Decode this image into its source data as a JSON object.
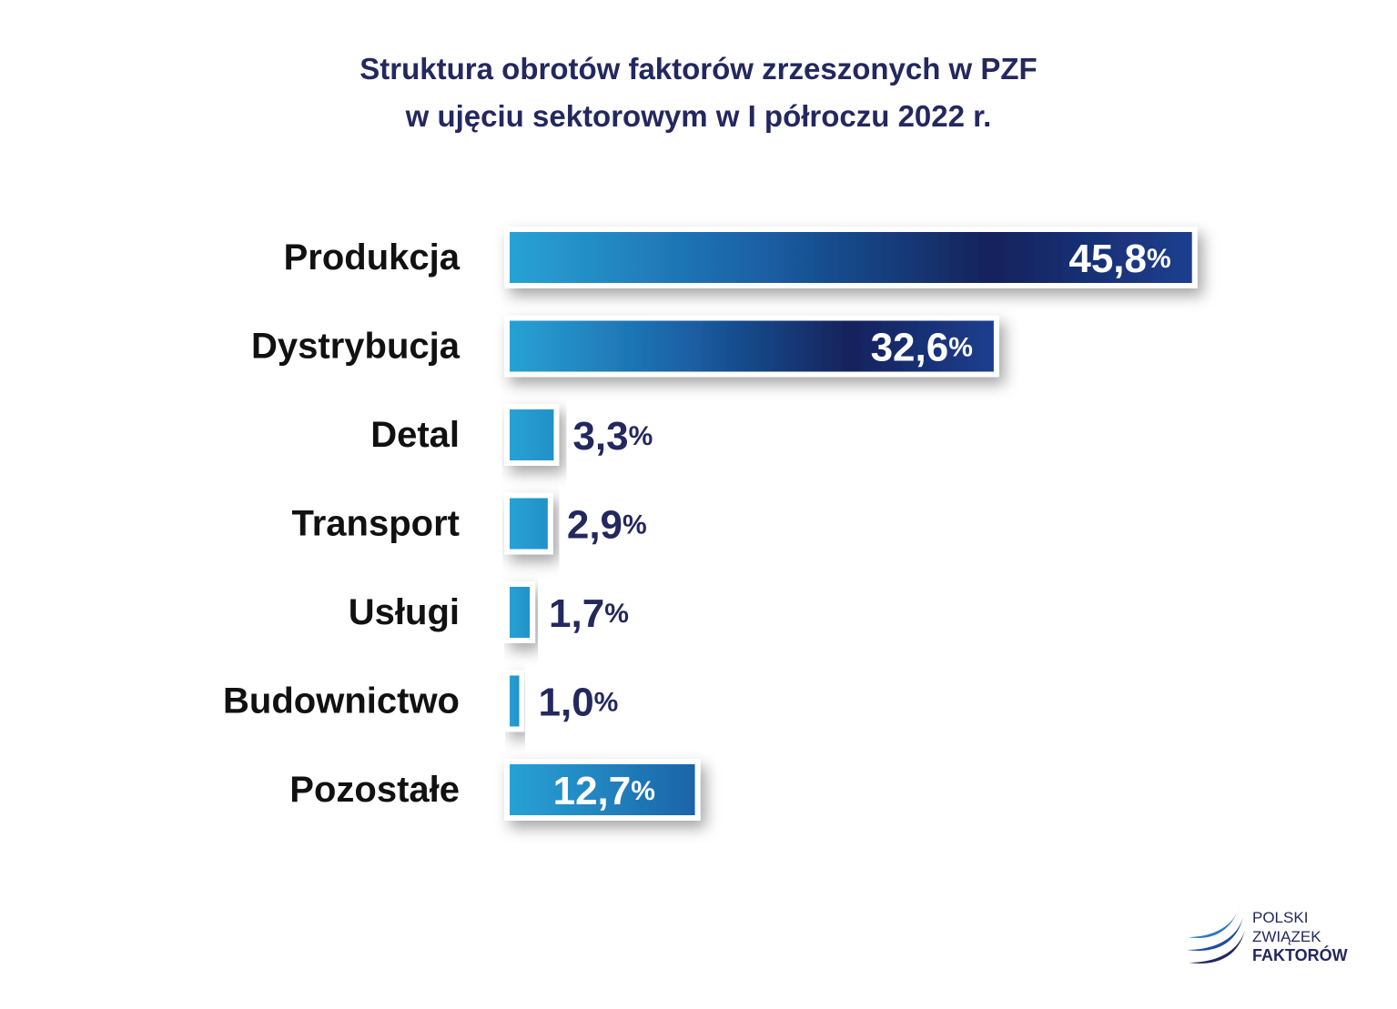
{
  "chart_data": {
    "type": "bar",
    "orientation": "horizontal",
    "title_lines": [
      "Struktura obrotów faktorów zrzeszonych w PZF",
      "w ujęciu sektorowym w I półroczu 2022 r."
    ],
    "categories": [
      "Produkcja",
      "Dystrybucja",
      "Detal",
      "Transport",
      "Usługi",
      "Budownictwo",
      "Pozostałe"
    ],
    "values": [
      45.8,
      32.6,
      3.3,
      2.9,
      1.7,
      1.0,
      12.7
    ],
    "value_labels": [
      "45,8",
      "32,6",
      "3,3",
      "2,9",
      "1,7",
      "1,0",
      "12,7"
    ],
    "unit": "%",
    "label_inside": [
      true,
      true,
      false,
      false,
      false,
      false,
      true
    ],
    "colors": {
      "bar_light": "#28a3d6",
      "bar_mid": "#1b63a8",
      "bar_dark": "#13225c",
      "bar_end": "#1e3f8f",
      "label_dark": "#23285e",
      "label_inside": "#ffffff",
      "category": "#111111"
    },
    "grid": false,
    "legend": "none"
  },
  "logo": {
    "lines": [
      "POLSKI",
      "ZWIĄZEK",
      "FAKTORÓW"
    ],
    "icon": "pzf-wave-logo-icon"
  }
}
